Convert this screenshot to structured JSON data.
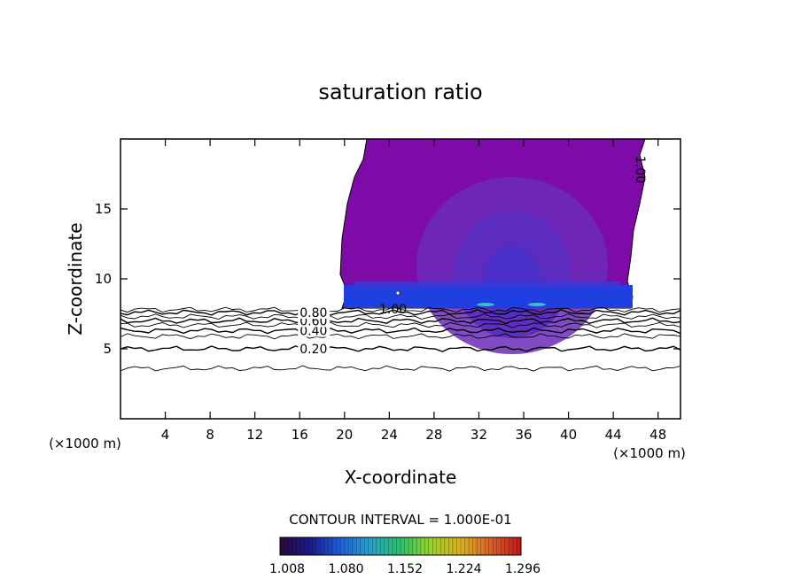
{
  "chart_data": {
    "type": "contour",
    "title": "saturation ratio",
    "xlabel": "X-coordinate",
    "ylabel": "Z-coordinate",
    "x_unit": "(×1000 m)",
    "z_unit": "(×1000 m)",
    "xlim": [
      0,
      50
    ],
    "ylim": [
      0,
      20
    ],
    "x_ticks": [
      4,
      8,
      12,
      16,
      20,
      24,
      28,
      32,
      36,
      40,
      44,
      48
    ],
    "y_ticks": [
      5,
      10,
      15
    ],
    "contour_interval_text": "CONTOUR INTERVAL = 1.000E-01",
    "contour_lines": [
      {
        "level": "0.20",
        "z": 5.0,
        "labeled": true
      },
      {
        "level": "0.40",
        "z": 6.3,
        "labeled": true
      },
      {
        "level": "0.60",
        "z": 7.0,
        "labeled": true
      },
      {
        "level": "0.80",
        "z": 7.6,
        "labeled": true
      },
      {
        "level": "",
        "z": 3.6,
        "labeled": false
      },
      {
        "level": "",
        "z": 5.9,
        "labeled": false
      },
      {
        "level": "",
        "z": 6.7,
        "labeled": false
      },
      {
        "level": "",
        "z": 7.3,
        "labeled": false
      },
      {
        "level": "",
        "z": 7.8,
        "labeled": false
      }
    ],
    "region_label_1": "1.00",
    "region_label_2": "1.00",
    "supersaturated_region": {
      "x_range": [
        19.5,
        45.5
      ],
      "z_range": [
        7.9,
        20
      ]
    },
    "colorbar": {
      "ticks": [
        "1.008",
        "1.080",
        "1.152",
        "1.224",
        "1.296"
      ],
      "colors": [
        "#2a0a3a",
        "#1a1a8a",
        "#1f5fd8",
        "#2aa0c8",
        "#2cc06a",
        "#9ad02a",
        "#d8b020",
        "#d8602a",
        "#c01818"
      ]
    },
    "grid": false
  }
}
